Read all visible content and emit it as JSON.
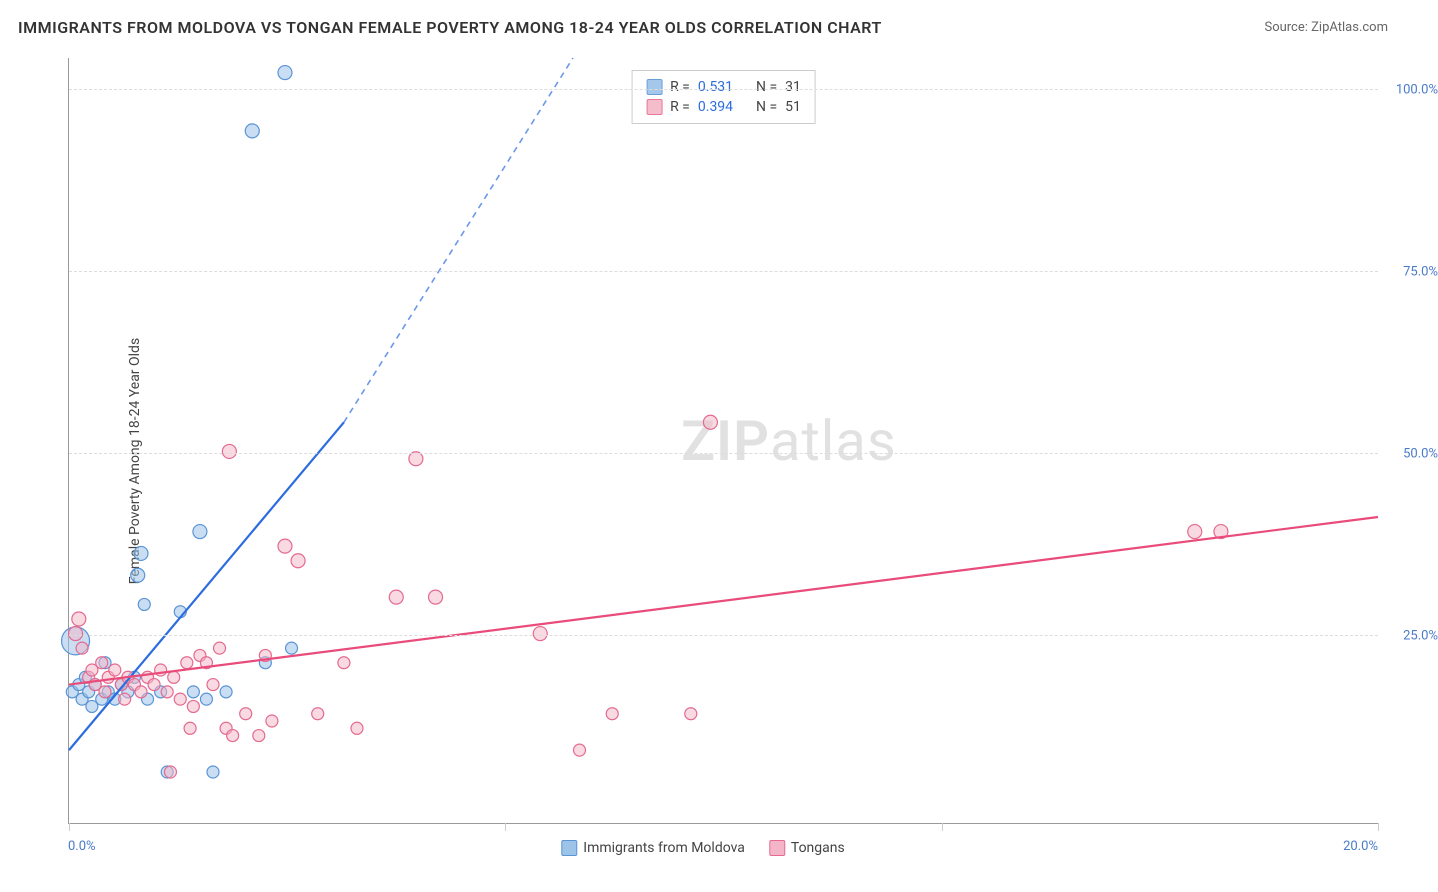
{
  "title": "IMMIGRANTS FROM MOLDOVA VS TONGAN FEMALE POVERTY AMONG 18-24 YEAR OLDS CORRELATION CHART",
  "source": "Source: ZipAtlas.com",
  "watermark": {
    "bold": "ZIP",
    "rest": "atlas"
  },
  "chart": {
    "type": "scatter",
    "y_axis_title": "Female Poverty Among 18-24 Year Olds",
    "xlim": [
      0,
      20
    ],
    "ylim": [
      0,
      105
    ],
    "x_tick_label_left": "0.0%",
    "x_tick_label_right": "20.0%",
    "x_ticks_pct": [
      0,
      33.33,
      66.67,
      100
    ],
    "y_gridlines": [
      {
        "pct": 24.5,
        "label": "25.0%"
      },
      {
        "pct": 48.3,
        "label": "50.0%"
      },
      {
        "pct": 72.0,
        "label": "75.0%"
      },
      {
        "pct": 95.8,
        "label": "100.0%"
      }
    ],
    "background_color": "#ffffff",
    "grid_color": "#dddddd",
    "axis_color": "#999999",
    "series": [
      {
        "id": "moldova",
        "label": "Immigrants from Moldova",
        "fill": "#9cc3e8",
        "stroke": "#5a94d6",
        "fill_opacity": 0.55,
        "line_color": "#2d6cdf",
        "R": "0.531",
        "N": "31",
        "trend": {
          "x1": 0,
          "y1": 10,
          "x2": 4.2,
          "y2": 55,
          "dash_to_x": 7.7,
          "dash_to_y": 105
        },
        "points": [
          {
            "x": 0.05,
            "y": 18,
            "r": 6
          },
          {
            "x": 0.1,
            "y": 25,
            "r": 14
          },
          {
            "x": 0.15,
            "y": 19,
            "r": 6
          },
          {
            "x": 0.2,
            "y": 17,
            "r": 6
          },
          {
            "x": 0.25,
            "y": 20,
            "r": 6
          },
          {
            "x": 0.3,
            "y": 18,
            "r": 6
          },
          {
            "x": 0.35,
            "y": 16,
            "r": 6
          },
          {
            "x": 0.4,
            "y": 19,
            "r": 6
          },
          {
            "x": 0.5,
            "y": 17,
            "r": 6
          },
          {
            "x": 0.55,
            "y": 22,
            "r": 6
          },
          {
            "x": 0.6,
            "y": 18,
            "r": 6
          },
          {
            "x": 0.7,
            "y": 17,
            "r": 6
          },
          {
            "x": 0.8,
            "y": 19,
            "r": 6
          },
          {
            "x": 0.9,
            "y": 18,
            "r": 6
          },
          {
            "x": 1.0,
            "y": 20,
            "r": 6
          },
          {
            "x": 1.05,
            "y": 34,
            "r": 7
          },
          {
            "x": 1.1,
            "y": 37,
            "r": 7
          },
          {
            "x": 1.15,
            "y": 30,
            "r": 6
          },
          {
            "x": 1.2,
            "y": 17,
            "r": 6
          },
          {
            "x": 1.4,
            "y": 18,
            "r": 6
          },
          {
            "x": 1.5,
            "y": 7,
            "r": 6
          },
          {
            "x": 1.7,
            "y": 29,
            "r": 6
          },
          {
            "x": 1.9,
            "y": 18,
            "r": 6
          },
          {
            "x": 2.0,
            "y": 40,
            "r": 7
          },
          {
            "x": 2.1,
            "y": 17,
            "r": 6
          },
          {
            "x": 2.2,
            "y": 7,
            "r": 6
          },
          {
            "x": 2.4,
            "y": 18,
            "r": 6
          },
          {
            "x": 2.8,
            "y": 95,
            "r": 7
          },
          {
            "x": 3.0,
            "y": 22,
            "r": 6
          },
          {
            "x": 3.3,
            "y": 103,
            "r": 7
          },
          {
            "x": 3.4,
            "y": 24,
            "r": 6
          }
        ]
      },
      {
        "id": "tongans",
        "label": "Tongans",
        "fill": "#f4b6c6",
        "stroke": "#e46a90",
        "fill_opacity": 0.5,
        "line_color": "#e94b7a",
        "R": "0.394",
        "N": "51",
        "trend": {
          "x1": 0,
          "y1": 19,
          "x2": 20,
          "y2": 42
        },
        "points": [
          {
            "x": 0.1,
            "y": 26,
            "r": 7
          },
          {
            "x": 0.15,
            "y": 28,
            "r": 7
          },
          {
            "x": 0.2,
            "y": 24,
            "r": 6
          },
          {
            "x": 0.3,
            "y": 20,
            "r": 6
          },
          {
            "x": 0.35,
            "y": 21,
            "r": 6
          },
          {
            "x": 0.4,
            "y": 19,
            "r": 6
          },
          {
            "x": 0.5,
            "y": 22,
            "r": 6
          },
          {
            "x": 0.55,
            "y": 18,
            "r": 6
          },
          {
            "x": 0.6,
            "y": 20,
            "r": 6
          },
          {
            "x": 0.7,
            "y": 21,
            "r": 6
          },
          {
            "x": 0.8,
            "y": 19,
            "r": 6
          },
          {
            "x": 0.85,
            "y": 17,
            "r": 6
          },
          {
            "x": 0.9,
            "y": 20,
            "r": 6
          },
          {
            "x": 1.0,
            "y": 19,
            "r": 6
          },
          {
            "x": 1.1,
            "y": 18,
            "r": 6
          },
          {
            "x": 1.2,
            "y": 20,
            "r": 6
          },
          {
            "x": 1.3,
            "y": 19,
            "r": 6
          },
          {
            "x": 1.4,
            "y": 21,
            "r": 6
          },
          {
            "x": 1.5,
            "y": 18,
            "r": 6
          },
          {
            "x": 1.55,
            "y": 7,
            "r": 6
          },
          {
            "x": 1.6,
            "y": 20,
            "r": 6
          },
          {
            "x": 1.7,
            "y": 17,
            "r": 6
          },
          {
            "x": 1.8,
            "y": 22,
            "r": 6
          },
          {
            "x": 1.85,
            "y": 13,
            "r": 6
          },
          {
            "x": 1.9,
            "y": 16,
            "r": 6
          },
          {
            "x": 2.0,
            "y": 23,
            "r": 6
          },
          {
            "x": 2.1,
            "y": 22,
            "r": 6
          },
          {
            "x": 2.2,
            "y": 19,
            "r": 6
          },
          {
            "x": 2.3,
            "y": 24,
            "r": 6
          },
          {
            "x": 2.4,
            "y": 13,
            "r": 6
          },
          {
            "x": 2.45,
            "y": 51,
            "r": 7
          },
          {
            "x": 2.5,
            "y": 12,
            "r": 6
          },
          {
            "x": 2.7,
            "y": 15,
            "r": 6
          },
          {
            "x": 2.9,
            "y": 12,
            "r": 6
          },
          {
            "x": 3.0,
            "y": 23,
            "r": 6
          },
          {
            "x": 3.1,
            "y": 14,
            "r": 6
          },
          {
            "x": 3.3,
            "y": 38,
            "r": 7
          },
          {
            "x": 3.5,
            "y": 36,
            "r": 7
          },
          {
            "x": 3.8,
            "y": 15,
            "r": 6
          },
          {
            "x": 4.2,
            "y": 22,
            "r": 6
          },
          {
            "x": 4.4,
            "y": 13,
            "r": 6
          },
          {
            "x": 5.0,
            "y": 31,
            "r": 7
          },
          {
            "x": 5.3,
            "y": 50,
            "r": 7
          },
          {
            "x": 5.6,
            "y": 31,
            "r": 7
          },
          {
            "x": 7.2,
            "y": 26,
            "r": 7
          },
          {
            "x": 7.8,
            "y": 10,
            "r": 6
          },
          {
            "x": 8.3,
            "y": 15,
            "r": 6
          },
          {
            "x": 9.5,
            "y": 15,
            "r": 6
          },
          {
            "x": 9.8,
            "y": 55,
            "r": 7
          },
          {
            "x": 17.2,
            "y": 40,
            "r": 7
          },
          {
            "x": 17.6,
            "y": 40,
            "r": 7
          }
        ]
      }
    ]
  }
}
